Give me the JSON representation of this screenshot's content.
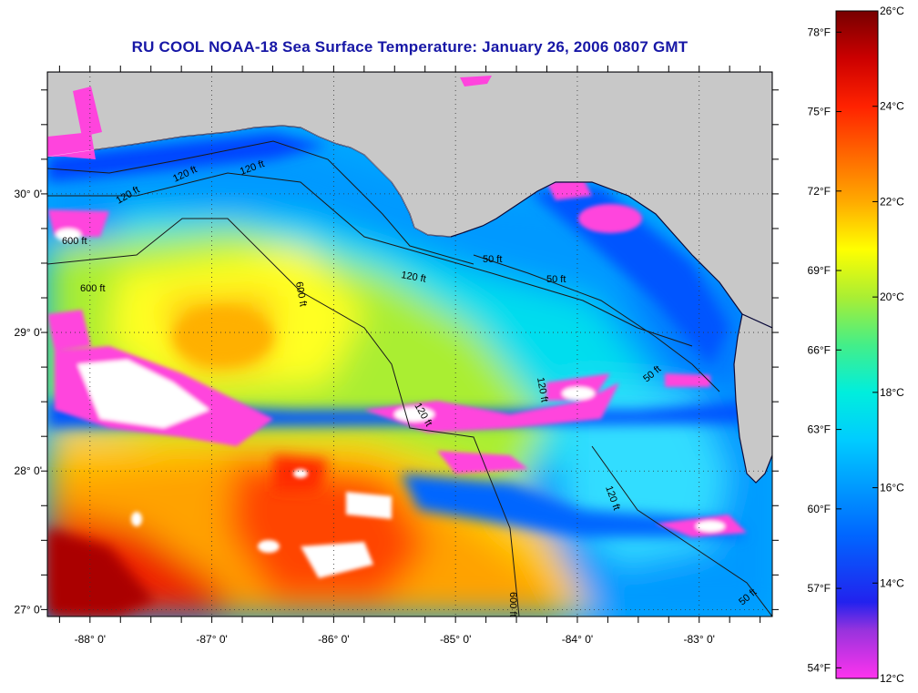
{
  "title": "RU COOL  NOAA-18  Sea Surface Temperature:  January 26, 2006 0807 GMT",
  "colors": {
    "land": "#c8c8c8",
    "coast": "#0a0a3a",
    "contour": "#1a1a1a",
    "title": "#1717a6"
  },
  "chart_data": {
    "type": "heatmap",
    "title": "RU COOL  NOAA-18  Sea Surface Temperature:  January 26, 2006 0807 GMT",
    "x_range": [
      -88.35,
      -82.4
    ],
    "y_range": [
      26.95,
      30.88
    ],
    "x_ticks": [
      {
        "value": -88,
        "label": "-88° 0'"
      },
      {
        "value": -87,
        "label": "-87° 0'"
      },
      {
        "value": -86,
        "label": "-86° 0'"
      },
      {
        "value": -85,
        "label": "-85° 0'"
      },
      {
        "value": -84,
        "label": "-84° 0'"
      },
      {
        "value": -83,
        "label": "-83° 0'"
      }
    ],
    "y_ticks": [
      {
        "value": 27,
        "label": "27° 0'"
      },
      {
        "value": 28,
        "label": "28° 0'"
      },
      {
        "value": 29,
        "label": "29° 0'"
      },
      {
        "value": 30,
        "label": "30° 0'"
      }
    ],
    "grid": true,
    "contour_labels": [
      "120 ft",
      "120 ft",
      "120 ft",
      "600 ft",
      "600 ft",
      "600 ft",
      "120 ft",
      "50 ft",
      "50 ft",
      "120 ft",
      "50 ft",
      "120 ft",
      "50 ft",
      "120 ft",
      "600 ft"
    ],
    "colorbar": {
      "range_c": [
        12,
        26
      ],
      "celsius_ticks": [
        {
          "value": 26,
          "label": "26°C"
        },
        {
          "value": 24,
          "label": "24°C"
        },
        {
          "value": 22,
          "label": "22°C"
        },
        {
          "value": 20,
          "label": "20°C"
        },
        {
          "value": 18,
          "label": "18°C"
        },
        {
          "value": 16,
          "label": "16°C"
        },
        {
          "value": 14,
          "label": "14°C"
        },
        {
          "value": 12,
          "label": "12°C"
        }
      ],
      "fahrenheit_ticks": [
        {
          "value": 78,
          "label": "78°F"
        },
        {
          "value": 75,
          "label": "75°F"
        },
        {
          "value": 72,
          "label": "72°F"
        },
        {
          "value": 69,
          "label": "69°F"
        },
        {
          "value": 66,
          "label": "66°F"
        },
        {
          "value": 63,
          "label": "63°F"
        },
        {
          "value": 60,
          "label": "60°F"
        },
        {
          "value": 57,
          "label": "57°F"
        },
        {
          "value": 54,
          "label": "54°F"
        }
      ],
      "stops": [
        {
          "c": 12,
          "color": "#ff33ee"
        },
        {
          "c": 13,
          "color": "#9933dd"
        },
        {
          "c": 13.6,
          "color": "#2222ee"
        },
        {
          "c": 15,
          "color": "#0066ff"
        },
        {
          "c": 16,
          "color": "#0099ff"
        },
        {
          "c": 17,
          "color": "#00ccff"
        },
        {
          "c": 18,
          "color": "#00eedd"
        },
        {
          "c": 19,
          "color": "#44ee88"
        },
        {
          "c": 20,
          "color": "#aaee33"
        },
        {
          "c": 21,
          "color": "#ffff00"
        },
        {
          "c": 22,
          "color": "#ffaa00"
        },
        {
          "c": 23,
          "color": "#ff6600"
        },
        {
          "c": 24,
          "color": "#ff2200"
        },
        {
          "c": 25,
          "color": "#cc0000"
        },
        {
          "c": 26,
          "color": "#770000"
        }
      ]
    }
  }
}
